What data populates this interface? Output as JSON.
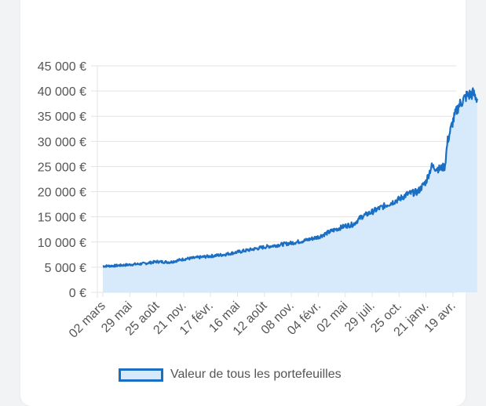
{
  "chart_data": {
    "type": "area",
    "title": "",
    "xlabel": "",
    "ylabel": "",
    "ylim": [
      0,
      45000
    ],
    "y_ticks": [
      "0 €",
      "5 000 €",
      "10 000 €",
      "15 000 €",
      "20 000 €",
      "25 000 €",
      "30 000 €",
      "35 000 €",
      "40 000 €",
      "45 000 €"
    ],
    "x_ticks": [
      "02 mars",
      "29 mai",
      "25 août",
      "21 nov.",
      "17 févr.",
      "16 mai",
      "12 août",
      "08 nov.",
      "04 févr.",
      "02 mai",
      "29 juil.",
      "25 oct.",
      "21 janv.",
      "19 avr."
    ],
    "grid": true,
    "legend_position": "bottom",
    "series": [
      {
        "name": "Valeur de tous les portefeuilles",
        "color": "#1a6fc4",
        "fill": "#d6eafb",
        "points": [
          [
            0,
            5200
          ],
          [
            0.5,
            5300
          ],
          [
            1,
            5500
          ],
          [
            1.5,
            5700
          ],
          [
            2,
            6100
          ],
          [
            2.5,
            6000
          ],
          [
            3,
            6600
          ],
          [
            3.5,
            6900
          ],
          [
            4,
            7200
          ],
          [
            4.5,
            7500
          ],
          [
            5,
            8000
          ],
          [
            5.5,
            8500
          ],
          [
            6,
            9000
          ],
          [
            6.5,
            9400
          ],
          [
            7,
            9800
          ],
          [
            7.5,
            10300
          ],
          [
            8,
            11000
          ],
          [
            8.5,
            12200
          ],
          [
            9,
            13200
          ],
          [
            9.3,
            13500
          ],
          [
            9.6,
            15000
          ],
          [
            10,
            16000
          ],
          [
            10.5,
            17300
          ],
          [
            11,
            18500
          ],
          [
            11.3,
            19500
          ],
          [
            11.7,
            20000
          ],
          [
            12,
            22000
          ],
          [
            12.2,
            25000
          ],
          [
            12.5,
            24500
          ],
          [
            12.7,
            25000
          ],
          [
            12.8,
            30000
          ],
          [
            13,
            34000
          ],
          [
            13.2,
            37000
          ],
          [
            13.5,
            39000
          ],
          [
            13.75,
            39500
          ],
          [
            13.9,
            38500
          ]
        ]
      }
    ]
  },
  "legend": {
    "label": "Valeur de tous les portefeuilles"
  }
}
